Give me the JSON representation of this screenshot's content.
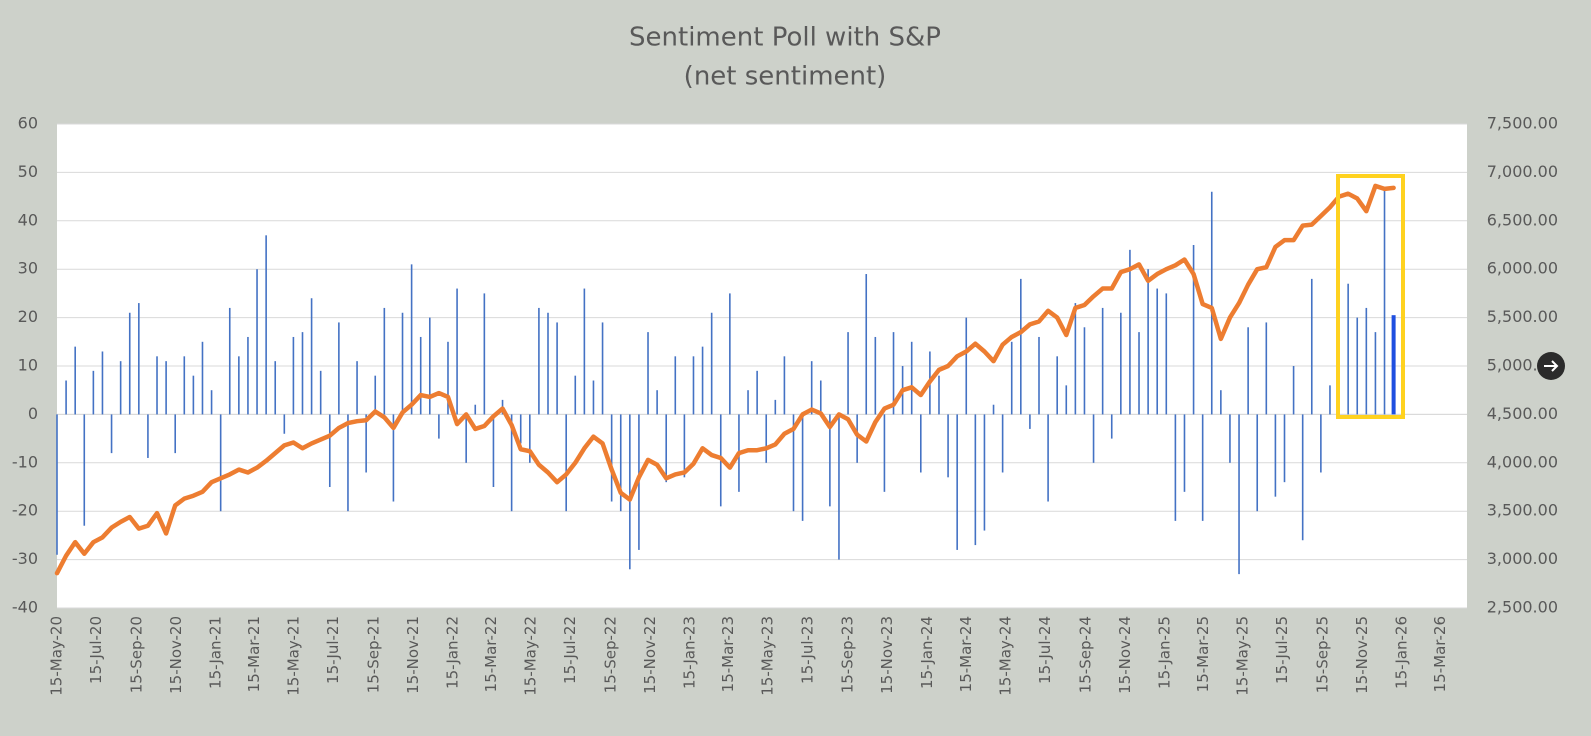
{
  "chart_data": {
    "type": "bar-line",
    "title": "Sentiment Poll with S&P",
    "subtitle": "(net sentiment)",
    "x": [
      "2020-05-15",
      "2020-05-29",
      "2020-06-12",
      "2020-06-26",
      "2020-07-10",
      "2020-07-24",
      "2020-08-07",
      "2020-08-21",
      "2020-09-04",
      "2020-09-18",
      "2020-10-02",
      "2020-10-16",
      "2020-10-30",
      "2020-11-13",
      "2020-11-27",
      "2020-12-11",
      "2020-12-25",
      "2021-01-08",
      "2021-01-22",
      "2021-02-05",
      "2021-02-19",
      "2021-03-05",
      "2021-03-19",
      "2021-04-02",
      "2021-04-16",
      "2021-04-30",
      "2021-05-14",
      "2021-05-28",
      "2021-06-11",
      "2021-06-25",
      "2021-07-09",
      "2021-07-23",
      "2021-08-06",
      "2021-08-20",
      "2021-09-03",
      "2021-09-17",
      "2021-10-01",
      "2021-10-15",
      "2021-10-29",
      "2021-11-12",
      "2021-11-26",
      "2021-12-10",
      "2021-12-24",
      "2022-01-07",
      "2022-01-21",
      "2022-02-04",
      "2022-02-18",
      "2022-03-04",
      "2022-03-18",
      "2022-04-01",
      "2022-04-15",
      "2022-04-29",
      "2022-05-13",
      "2022-05-27",
      "2022-06-10",
      "2022-06-24",
      "2022-07-08",
      "2022-07-22",
      "2022-08-05",
      "2022-08-19",
      "2022-09-02",
      "2022-09-16",
      "2022-09-30",
      "2022-10-14",
      "2022-10-28",
      "2022-11-11",
      "2022-11-25",
      "2022-12-09",
      "2022-12-23",
      "2023-01-06",
      "2023-01-20",
      "2023-02-03",
      "2023-02-17",
      "2023-03-03",
      "2023-03-17",
      "2023-03-31",
      "2023-04-14",
      "2023-04-28",
      "2023-05-12",
      "2023-05-26",
      "2023-06-09",
      "2023-06-23",
      "2023-07-07",
      "2023-07-21",
      "2023-08-04",
      "2023-08-18",
      "2023-09-01",
      "2023-09-15",
      "2023-09-29",
      "2023-10-13",
      "2023-10-27",
      "2023-11-10",
      "2023-11-24",
      "2023-12-08",
      "2023-12-22",
      "2024-01-05",
      "2024-01-19",
      "2024-02-02",
      "2024-02-16",
      "2024-03-01",
      "2024-03-15",
      "2024-03-29",
      "2024-04-12",
      "2024-04-26",
      "2024-05-10",
      "2024-05-24",
      "2024-06-07",
      "2024-06-21",
      "2024-07-05",
      "2024-07-19",
      "2024-08-02",
      "2024-08-16",
      "2024-08-30",
      "2024-09-13",
      "2024-09-27",
      "2024-10-11",
      "2024-10-25",
      "2024-11-08",
      "2024-11-22",
      "2024-12-06",
      "2024-12-20",
      "2025-01-03",
      "2025-01-17",
      "2025-01-31",
      "2025-02-14",
      "2025-02-28",
      "2025-03-14",
      "2025-03-28",
      "2025-04-11",
      "2025-04-25",
      "2025-05-09",
      "2025-05-23",
      "2025-06-06",
      "2025-06-20",
      "2025-07-04",
      "2025-07-18",
      "2025-08-01",
      "2025-08-15",
      "2025-08-29",
      "2025-09-12",
      "2025-09-26",
      "2025-10-10",
      "2025-10-24",
      "2025-11-07",
      "2025-11-21",
      "2025-12-05",
      "2025-12-19",
      "2026-01-02"
    ],
    "series": [
      {
        "type": "bar",
        "color": "#4472c4",
        "values": [
          -29,
          7,
          14,
          -23,
          9,
          13,
          -8,
          11,
          21,
          23,
          -9,
          12,
          11,
          -8,
          12,
          8,
          15,
          5,
          -20,
          22,
          12,
          16,
          30,
          37,
          11,
          -4,
          16,
          17,
          24,
          9,
          -15,
          19,
          -20,
          11,
          -12,
          8,
          22,
          -18,
          21,
          31,
          16,
          20,
          -5,
          15,
          26,
          -10,
          2,
          25,
          -15,
          3,
          -20,
          -6,
          -10,
          22,
          21,
          19,
          -20,
          8,
          26,
          7,
          19,
          -18,
          -20,
          -32,
          -28,
          17,
          5,
          -14,
          12,
          -13,
          12,
          14,
          21,
          -19,
          25,
          -16,
          5,
          9,
          -10,
          3,
          12,
          -20,
          -22,
          11,
          7,
          -19,
          -30,
          17,
          -10,
          29,
          16,
          -16,
          17,
          10,
          15,
          -12,
          13,
          8,
          -13,
          -28,
          20,
          -27,
          -24,
          2,
          -12,
          15,
          28,
          -3,
          16,
          -18,
          12,
          6,
          23,
          18,
          -10,
          22,
          -5,
          21,
          34,
          17,
          30,
          26,
          25,
          -22,
          -16,
          35,
          -22,
          46,
          5,
          -10,
          -33,
          18,
          -20,
          19,
          -17,
          -14,
          10,
          -26,
          28,
          -12,
          6,
          34,
          27,
          20,
          22,
          17,
          47,
          20.5
        ]
      },
      {
        "type": "line",
        "color": "#ed7d31",
        "axis": "y2",
        "values": [
          2860,
          3040,
          3180,
          3060,
          3180,
          3230,
          3330,
          3390,
          3440,
          3320,
          3350,
          3480,
          3270,
          3560,
          3630,
          3660,
          3700,
          3800,
          3840,
          3880,
          3930,
          3900,
          3950,
          4020,
          4100,
          4180,
          4210,
          4150,
          4200,
          4240,
          4280,
          4360,
          4410,
          4430,
          4440,
          4530,
          4470,
          4360,
          4520,
          4600,
          4700,
          4680,
          4720,
          4680,
          4400,
          4500,
          4350,
          4380,
          4480,
          4560,
          4390,
          4140,
          4120,
          3980,
          3900,
          3800,
          3880,
          4000,
          4150,
          4270,
          4200,
          3930,
          3690,
          3620,
          3850,
          4030,
          3980,
          3840,
          3880,
          3900,
          3990,
          4150,
          4080,
          4050,
          3950,
          4100,
          4130,
          4130,
          4150,
          4190,
          4300,
          4350,
          4500,
          4550,
          4510,
          4370,
          4500,
          4450,
          4290,
          4220,
          4420,
          4560,
          4600,
          4750,
          4780,
          4700,
          4840,
          4960,
          5000,
          5100,
          5150,
          5230,
          5150,
          5050,
          5220,
          5300,
          5350,
          5430,
          5460,
          5570,
          5500,
          5320,
          5600,
          5630,
          5720,
          5800,
          5800,
          5970,
          6000,
          6050,
          5880,
          5950,
          6000,
          6040,
          6100,
          5950,
          5640,
          5600,
          5280,
          5500,
          5650,
          5840,
          6000,
          6020,
          6230,
          6300,
          6300,
          6450,
          6460,
          6550,
          6640,
          6750,
          6780,
          6730,
          6600,
          6860,
          6830,
          6840
        ]
      }
    ],
    "xlim": [
      "2020-05-15",
      "2026-04-25"
    ],
    "xticks": [
      {
        "value": "2020-05-15",
        "label": "15-May-20"
      },
      {
        "value": "2020-07-15",
        "label": "15-Jul-20"
      },
      {
        "value": "2020-09-15",
        "label": "15-Sep-20"
      },
      {
        "value": "2020-11-15",
        "label": "15-Nov-20"
      },
      {
        "value": "2021-01-15",
        "label": "15-Jan-21"
      },
      {
        "value": "2021-03-15",
        "label": "15-Mar-21"
      },
      {
        "value": "2021-05-15",
        "label": "15-May-21"
      },
      {
        "value": "2021-07-15",
        "label": "15-Jul-21"
      },
      {
        "value": "2021-09-15",
        "label": "15-Sep-21"
      },
      {
        "value": "2021-11-15",
        "label": "15-Nov-21"
      },
      {
        "value": "2022-01-15",
        "label": "15-Jan-22"
      },
      {
        "value": "2022-03-15",
        "label": "15-Mar-22"
      },
      {
        "value": "2022-05-15",
        "label": "15-May-22"
      },
      {
        "value": "2022-07-15",
        "label": "15-Jul-22"
      },
      {
        "value": "2022-09-15",
        "label": "15-Sep-22"
      },
      {
        "value": "2022-11-15",
        "label": "15-Nov-22"
      },
      {
        "value": "2023-01-15",
        "label": "15-Jan-23"
      },
      {
        "value": "2023-03-15",
        "label": "15-Mar-23"
      },
      {
        "value": "2023-05-15",
        "label": "15-May-23"
      },
      {
        "value": "2023-07-15",
        "label": "15-Jul-23"
      },
      {
        "value": "2023-09-15",
        "label": "15-Sep-23"
      },
      {
        "value": "2023-11-15",
        "label": "15-Nov-23"
      },
      {
        "value": "2024-01-15",
        "label": "15-Jan-24"
      },
      {
        "value": "2024-03-15",
        "label": "15-Mar-24"
      },
      {
        "value": "2024-05-15",
        "label": "15-May-24"
      },
      {
        "value": "2024-07-15",
        "label": "15-Jul-24"
      },
      {
        "value": "2024-09-15",
        "label": "15-Sep-24"
      },
      {
        "value": "2024-11-15",
        "label": "15-Nov-24"
      },
      {
        "value": "2025-01-15",
        "label": "15-Jan-25"
      },
      {
        "value": "2025-03-15",
        "label": "15-Mar-25"
      },
      {
        "value": "2025-05-15",
        "label": "15-May-25"
      },
      {
        "value": "2025-07-15",
        "label": "15-Jul-25"
      },
      {
        "value": "2025-09-15",
        "label": "15-Sep-25"
      },
      {
        "value": "2025-11-15",
        "label": "15-Nov-25"
      },
      {
        "value": "2026-01-15",
        "label": "15-Jan-26"
      },
      {
        "value": "2026-03-15",
        "label": "15-Mar-26"
      }
    ],
    "ylim": [
      -40,
      60
    ],
    "yticks": [
      -40,
      -30,
      -20,
      -10,
      0,
      10,
      20,
      30,
      40,
      50,
      60
    ],
    "y2lim": [
      2500,
      7500
    ],
    "y2ticks": [
      {
        "value": 2500,
        "label": "2,500.00"
      },
      {
        "value": 3000,
        "label": "3,000.00"
      },
      {
        "value": 3500,
        "label": "3,500.00"
      },
      {
        "value": 4000,
        "label": "4,000.00"
      },
      {
        "value": 4500,
        "label": "4,500.00"
      },
      {
        "value": 5000,
        "label": "5,000.00"
      },
      {
        "value": 5500,
        "label": "5,500.00"
      },
      {
        "value": 6000,
        "label": "6,000.00"
      },
      {
        "value": 6500,
        "label": "6,500.00"
      },
      {
        "value": 7000,
        "label": "7,000.00"
      },
      {
        "value": 7500,
        "label": "7,500.00"
      }
    ],
    "grid": true
  }
}
